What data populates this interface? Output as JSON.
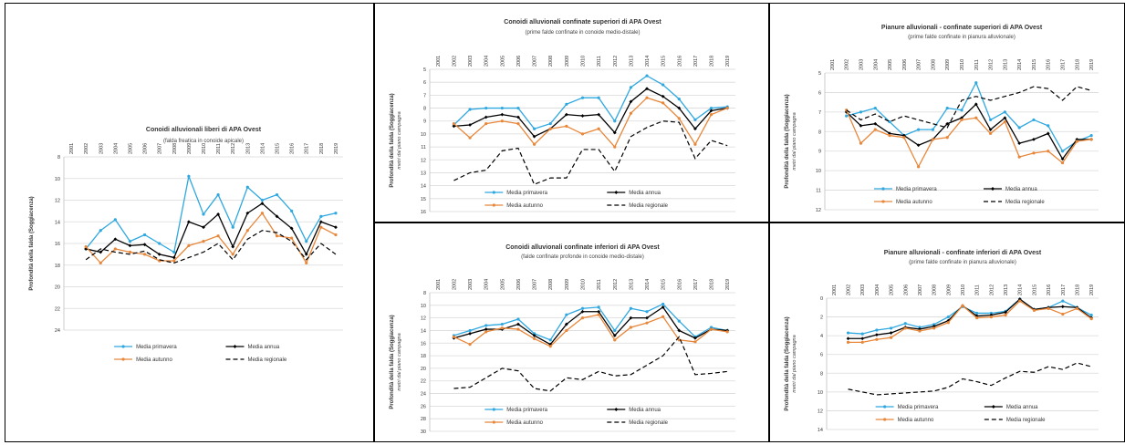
{
  "chart_data": [
    {
      "type": "line",
      "title": "Conoidi alluvionali liberi di APA Ovest",
      "subtitle": "(falda freatica in conoide apicale)",
      "ylabel": "Profondità della falda (Soggiacenza)",
      "ylabel_sub": "",
      "x": [
        "2001",
        "2002",
        "2003",
        "2004",
        "2005",
        "2006",
        "2007",
        "2008",
        "2009",
        "2010",
        "2011",
        "2012",
        "2013",
        "2014",
        "2015",
        "2016",
        "2017",
        "2018",
        "2019"
      ],
      "ylim": [
        8,
        24
      ],
      "yticks": [
        8,
        10,
        12,
        14,
        16,
        18,
        20,
        22,
        24
      ],
      "y_inverted": true,
      "grid": true,
      "series": [
        {
          "name": "Media primavera",
          "color": "#2fa8e0",
          "dash": "",
          "marker": "circle",
          "values": [
            null,
            16.5,
            14.8,
            13.8,
            15.8,
            15.2,
            16.0,
            16.8,
            9.8,
            13.3,
            11.5,
            14.5,
            10.8,
            12.0,
            11.5,
            13.0,
            15.8,
            13.5,
            13.2
          ]
        },
        {
          "name": "Media annua",
          "color": "#000000",
          "dash": "",
          "marker": "diamond",
          "values": [
            null,
            16.5,
            16.8,
            15.6,
            16.2,
            16.1,
            17.0,
            17.3,
            14.0,
            14.5,
            13.3,
            16.3,
            13.2,
            12.3,
            13.5,
            14.6,
            17.0,
            14.0,
            14.5
          ]
        },
        {
          "name": "Media autunno",
          "color": "#e8873a",
          "dash": "",
          "marker": "circle",
          "values": [
            null,
            16.3,
            17.8,
            16.5,
            16.8,
            17.0,
            17.6,
            17.6,
            16.2,
            15.8,
            15.3,
            17.0,
            14.8,
            13.2,
            15.3,
            15.5,
            17.8,
            14.5,
            15.2
          ]
        },
        {
          "name": "Media regionale",
          "color": "#000000",
          "dash": "5,3",
          "marker": "",
          "values": [
            null,
            17.5,
            16.5,
            16.8,
            17.0,
            16.7,
            17.5,
            17.8,
            17.3,
            16.8,
            16.0,
            17.5,
            15.6,
            14.8,
            15.0,
            15.8,
            17.5,
            16.0,
            17.0
          ]
        }
      ],
      "legend": {
        "position": "bottom",
        "entries": [
          "Media primavera",
          "Media annua",
          "Media autunno",
          "Media regionale"
        ]
      }
    },
    {
      "type": "line",
      "title": "Conoidi alluvionali confinate superiori di APA Ovest",
      "subtitle": "(prime falde confinate in conoide medio-distale)",
      "ylabel": "Profondità della falda (Soggiacenza)",
      "ylabel_sub": "metri dal piano campagna",
      "x": [
        "2001",
        "2002",
        "2003",
        "2004",
        "2005",
        "2006",
        "2007",
        "2008",
        "2009",
        "2010",
        "2011",
        "2012",
        "2013",
        "2014",
        "2015",
        "2016",
        "2017",
        "2018",
        "2019"
      ],
      "ylim": [
        5,
        16
      ],
      "yticks": [
        5,
        6,
        7,
        8,
        9,
        10,
        11,
        12,
        13,
        14,
        15,
        16
      ],
      "y_inverted": true,
      "grid": true,
      "series": [
        {
          "name": "Media primavera",
          "color": "#2fa8e0",
          "dash": "",
          "marker": "circle",
          "values": [
            null,
            9.3,
            8.1,
            8.0,
            8.0,
            8.0,
            9.6,
            9.2,
            7.7,
            7.2,
            7.2,
            9.0,
            6.4,
            5.5,
            6.2,
            7.3,
            8.9,
            8.0,
            7.9
          ]
        },
        {
          "name": "Media annua",
          "color": "#000000",
          "dash": "",
          "marker": "diamond",
          "values": [
            null,
            9.4,
            9.3,
            8.7,
            8.5,
            8.7,
            10.2,
            9.6,
            8.5,
            8.6,
            8.5,
            9.9,
            7.5,
            6.5,
            7.1,
            8.0,
            9.6,
            8.2,
            8.0
          ]
        },
        {
          "name": "Media autunno",
          "color": "#e8873a",
          "dash": "",
          "marker": "circle",
          "values": [
            null,
            9.2,
            10.3,
            9.2,
            9.0,
            9.2,
            10.8,
            9.6,
            9.4,
            10.0,
            9.6,
            11.0,
            8.4,
            7.2,
            7.6,
            8.8,
            10.8,
            8.5,
            8.0
          ]
        },
        {
          "name": "Media regionale",
          "color": "#000000",
          "dash": "5,3",
          "marker": "",
          "values": [
            null,
            13.6,
            13.0,
            12.8,
            11.3,
            11.1,
            13.9,
            13.4,
            13.4,
            11.2,
            11.2,
            12.9,
            10.2,
            9.5,
            9.0,
            9.1,
            11.9,
            10.5,
            10.9
          ]
        }
      ],
      "legend": {
        "position": "bottom",
        "entries": [
          "Media primavera",
          "Media annua",
          "Media autunno",
          "Media regionale"
        ]
      }
    },
    {
      "type": "line",
      "title": "Pianure alluvionali - confinate superiori di APA Ovest",
      "subtitle": "(prime falde confinate in pianura alluvionale)",
      "ylabel": "Profondità della falda (Soggiacenza)",
      "ylabel_sub": "metri dal piano campagna",
      "x": [
        "2001",
        "2002",
        "2003",
        "2004",
        "2005",
        "2006",
        "2007",
        "2008",
        "2009",
        "2010",
        "2011",
        "2012",
        "2013",
        "2014",
        "2015",
        "2016",
        "2017",
        "2018",
        "2019"
      ],
      "ylim": [
        5,
        12
      ],
      "yticks": [
        5,
        6,
        7,
        8,
        9,
        10,
        11,
        12
      ],
      "y_inverted": true,
      "grid": true,
      "series": [
        {
          "name": "Media primavera",
          "color": "#2fa8e0",
          "dash": "",
          "marker": "circle",
          "values": [
            null,
            7.2,
            7.0,
            6.8,
            7.5,
            8.2,
            7.9,
            7.9,
            6.8,
            6.9,
            5.5,
            7.4,
            7.0,
            7.8,
            7.4,
            7.7,
            9.0,
            8.5,
            8.2
          ]
        },
        {
          "name": "Media annua",
          "color": "#000000",
          "dash": "",
          "marker": "diamond",
          "values": [
            null,
            7.0,
            7.7,
            7.6,
            8.1,
            8.2,
            8.7,
            8.4,
            7.6,
            7.3,
            6.6,
            7.9,
            7.3,
            8.6,
            8.4,
            8.1,
            9.4,
            8.4,
            8.4
          ]
        },
        {
          "name": "Media autunno",
          "color": "#e8873a",
          "dash": "",
          "marker": "circle",
          "values": [
            null,
            6.9,
            8.6,
            7.9,
            8.2,
            8.3,
            9.8,
            8.4,
            8.3,
            7.4,
            7.3,
            8.1,
            7.5,
            9.3,
            9.1,
            9.0,
            9.6,
            8.5,
            8.4
          ]
        },
        {
          "name": "Media regionale",
          "color": "#000000",
          "dash": "5,3",
          "marker": "",
          "values": [
            null,
            6.9,
            7.4,
            7.1,
            7.5,
            7.2,
            7.4,
            7.6,
            7.8,
            6.4,
            6.2,
            6.4,
            6.2,
            6.0,
            5.7,
            5.8,
            6.4,
            5.7,
            5.9
          ]
        }
      ],
      "legend": {
        "position": "bottom",
        "entries": [
          "Media primavera",
          "Media annua",
          "Media autunno",
          "Media regionale"
        ]
      }
    },
    {
      "type": "line",
      "title": "Conoidi alluvionali confinate inferiori di APA Ovest",
      "subtitle": "(falde confinate profonde in conoide medio-distale)",
      "ylabel": "Profondità della falda (Soggiacenza)",
      "ylabel_sub": "metri dal piano campagna",
      "x": [
        "2001",
        "2002",
        "2003",
        "2004",
        "2005",
        "2006",
        "2007",
        "2008",
        "2009",
        "2010",
        "2011",
        "2012",
        "2013",
        "2014",
        "2015",
        "2016",
        "2017",
        "2018",
        "2019"
      ],
      "ylim": [
        8,
        30
      ],
      "yticks": [
        8,
        10,
        12,
        14,
        16,
        18,
        20,
        22,
        24,
        26,
        28,
        30
      ],
      "y_inverted": true,
      "grid": true,
      "series": [
        {
          "name": "Media primavera",
          "color": "#2fa8e0",
          "dash": "",
          "marker": "circle",
          "values": [
            null,
            14.8,
            14.0,
            13.2,
            13.0,
            12.2,
            14.5,
            15.5,
            11.5,
            10.5,
            10.3,
            14.0,
            10.5,
            11.0,
            9.8,
            12.5,
            15.0,
            13.5,
            14.0
          ]
        },
        {
          "name": "Media annua",
          "color": "#000000",
          "dash": "",
          "marker": "diamond",
          "values": [
            null,
            15.2,
            14.5,
            13.8,
            13.8,
            13.0,
            14.8,
            16.2,
            13.0,
            11.0,
            11.0,
            14.8,
            12.0,
            12.0,
            10.3,
            14.0,
            15.2,
            13.8,
            14.0
          ]
        },
        {
          "name": "Media autunno",
          "color": "#e8873a",
          "dash": "",
          "marker": "circle",
          "values": [
            null,
            15.0,
            16.2,
            14.2,
            13.6,
            13.8,
            15.3,
            16.5,
            14.0,
            12.0,
            11.5,
            15.5,
            13.5,
            12.8,
            11.8,
            15.5,
            15.8,
            13.8,
            14.2
          ]
        },
        {
          "name": "Media regionale",
          "color": "#000000",
          "dash": "5,3",
          "marker": "",
          "values": [
            null,
            23.2,
            23.0,
            21.5,
            20.0,
            20.4,
            23.2,
            23.6,
            21.5,
            21.8,
            20.5,
            21.2,
            21.0,
            19.5,
            18.0,
            15.0,
            21.0,
            20.8,
            20.5
          ]
        }
      ],
      "legend": {
        "position": "bottom",
        "entries": [
          "Media primavera",
          "Media annua",
          "Media autunno",
          "Media regionale"
        ]
      }
    },
    {
      "type": "line",
      "title": "Pianure alluvionali - confinate inferiori di APA Ovest",
      "subtitle": "(prime falde confinate in pianura alluvionale)",
      "ylabel": "Profondità della falda (Soggiacenza)",
      "ylabel_sub": "metri dal piano campagna",
      "x": [
        "2001",
        "2002",
        "2003",
        "2004",
        "2005",
        "2006",
        "2007",
        "2008",
        "2009",
        "2010",
        "2011",
        "2012",
        "2013",
        "2014",
        "2015",
        "2016",
        "2017",
        "2018",
        "2019"
      ],
      "ylim": [
        0,
        14
      ],
      "yticks": [
        0,
        2,
        4,
        6,
        8,
        10,
        12,
        14
      ],
      "y_inverted": true,
      "grid": true,
      "series": [
        {
          "name": "Media primavera",
          "color": "#2fa8e0",
          "dash": "",
          "marker": "circle",
          "values": [
            null,
            3.7,
            3.8,
            3.4,
            3.2,
            2.7,
            3.1,
            2.8,
            2.0,
            0.9,
            1.6,
            1.6,
            1.4,
            0.1,
            1.2,
            1.0,
            0.3,
            1.0,
            1.8
          ]
        },
        {
          "name": "Media annua",
          "color": "#000000",
          "dash": "",
          "marker": "diamond",
          "values": [
            null,
            4.3,
            4.3,
            3.9,
            3.7,
            3.1,
            3.3,
            3.0,
            2.4,
            0.8,
            1.9,
            1.8,
            1.5,
            0.1,
            1.2,
            1.0,
            0.9,
            1.0,
            2.1
          ]
        },
        {
          "name": "Media autunno",
          "color": "#e8873a",
          "dash": "",
          "marker": "circle",
          "values": [
            null,
            4.7,
            4.7,
            4.4,
            4.2,
            3.2,
            3.5,
            3.2,
            2.6,
            0.8,
            2.1,
            2.0,
            1.8,
            0.3,
            1.3,
            1.1,
            1.7,
            1.1,
            2.2
          ]
        },
        {
          "name": "Media regionale",
          "color": "#000000",
          "dash": "5,3",
          "marker": "",
          "values": [
            null,
            9.7,
            10.0,
            10.3,
            10.2,
            10.1,
            10.0,
            9.9,
            9.5,
            8.6,
            8.9,
            9.3,
            8.5,
            7.8,
            7.9,
            7.3,
            7.6,
            6.9,
            7.3
          ]
        }
      ],
      "legend": {
        "position": "bottom",
        "entries": [
          "Media primavera",
          "Media annua",
          "Media autunno",
          "Media regionale"
        ]
      }
    }
  ]
}
